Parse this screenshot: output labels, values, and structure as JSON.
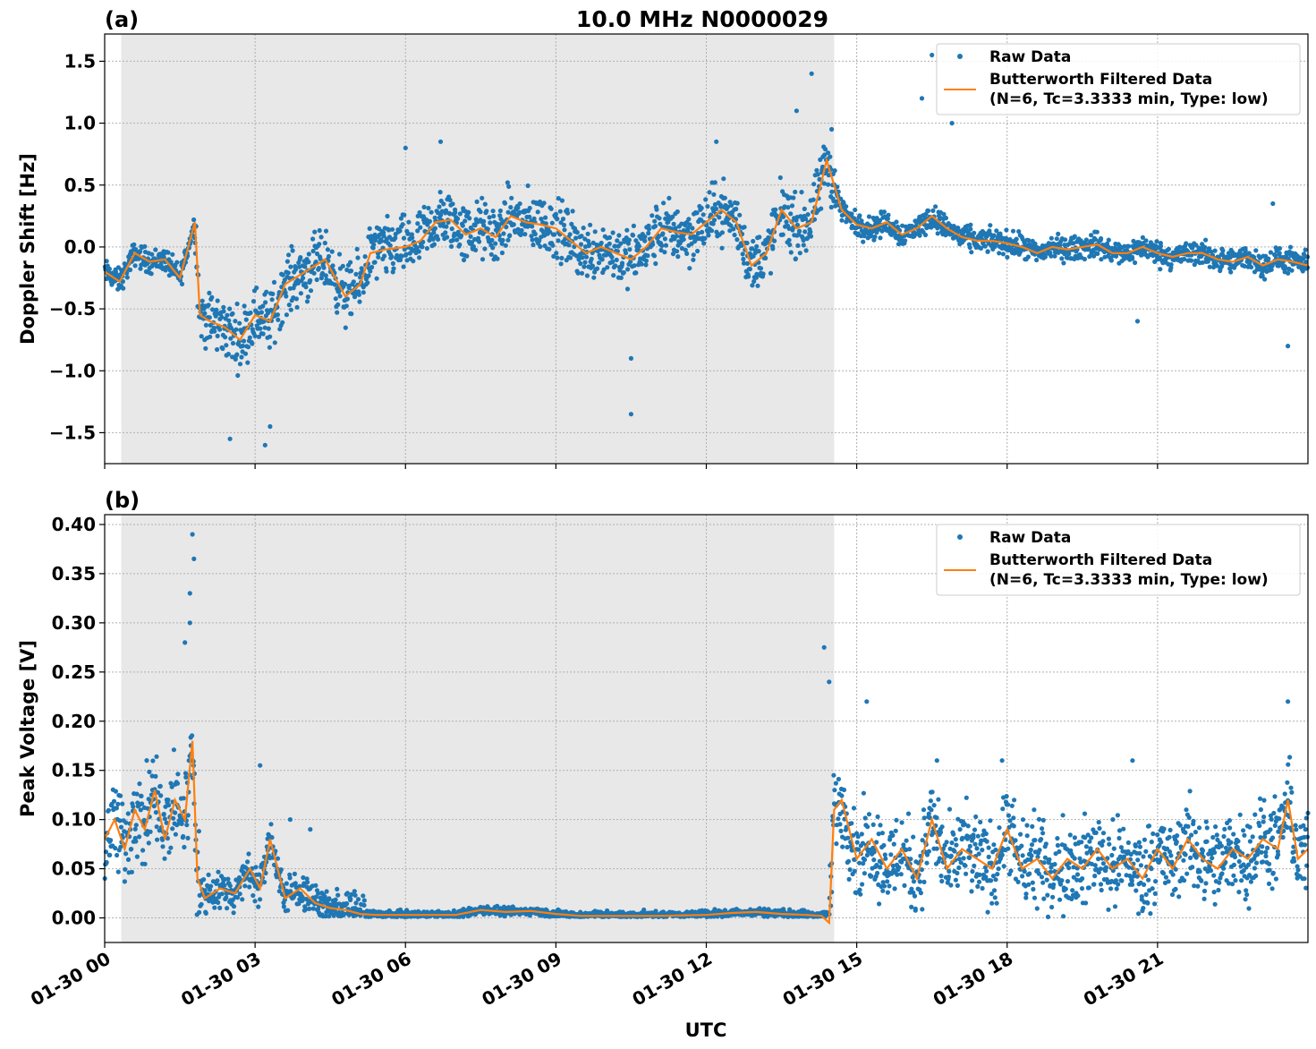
{
  "figure": {
    "title": "10.0 MHz N0000029",
    "xlabel": "UTC",
    "colors": {
      "raw": "#1f77b4",
      "filtered": "#ff7f0e",
      "shade": "#e8e8e8",
      "grid": "#b0b0b0"
    }
  },
  "chart_data": [
    {
      "type": "scatter",
      "panel_label": "(a)",
      "ylabel": "Doppler Shift [Hz]",
      "xlim_hours": [
        0,
        24
      ],
      "ylim": [
        -1.75,
        1.72
      ],
      "x_ticks": [
        {
          "value": 0,
          "label": "01-30 00"
        },
        {
          "value": 3,
          "label": "01-30 03"
        },
        {
          "value": 6,
          "label": "01-30 06"
        },
        {
          "value": 9,
          "label": "01-30 09"
        },
        {
          "value": 12,
          "label": "01-30 12"
        },
        {
          "value": 15,
          "label": "01-30 15"
        },
        {
          "value": 18,
          "label": "01-30 18"
        },
        {
          "value": 21,
          "label": "01-30 21"
        }
      ],
      "y_ticks": [
        {
          "value": 1.5,
          "label": "1.5"
        },
        {
          "value": 1.0,
          "label": "1.0"
        },
        {
          "value": 0.5,
          "label": "0.5"
        },
        {
          "value": 0.0,
          "label": "0.0"
        },
        {
          "value": -0.5,
          "label": "−0.5"
        },
        {
          "value": -1.0,
          "label": "−1.0"
        },
        {
          "value": -1.5,
          "label": "−1.5"
        }
      ],
      "grid": true,
      "shaded_region_hours": [
        0.33,
        14.55
      ],
      "legend_position": "top-right",
      "legend": {
        "raw_label": "Raw Data",
        "filtered_label_1": "Butterworth Filtered Data",
        "filtered_label_2": "(N=6, Tc=3.3333 min, Type: low)"
      },
      "filtered_series": {
        "name": "Butterworth Filtered Data",
        "x_hours": [
          0,
          0.3,
          0.6,
          0.9,
          1.2,
          1.5,
          1.8,
          1.9,
          2.1,
          2.4,
          2.7,
          3.0,
          3.3,
          3.6,
          4.0,
          4.4,
          4.8,
          5.1,
          5.3,
          5.6,
          6.0,
          6.3,
          6.6,
          6.9,
          7.2,
          7.5,
          7.8,
          8.1,
          8.4,
          8.7,
          9.0,
          9.3,
          9.6,
          9.9,
          10.2,
          10.5,
          10.8,
          11.1,
          11.4,
          11.7,
          12.0,
          12.3,
          12.6,
          12.9,
          13.2,
          13.5,
          13.8,
          14.1,
          14.4,
          14.55,
          14.7,
          15.0,
          15.3,
          15.6,
          15.9,
          16.2,
          16.5,
          16.8,
          17.1,
          17.4,
          17.7,
          18.0,
          18.3,
          18.6,
          18.9,
          19.2,
          19.5,
          19.8,
          20.1,
          20.4,
          20.7,
          21.0,
          21.3,
          21.6,
          21.9,
          22.2,
          22.5,
          22.8,
          23.1,
          23.4,
          23.7,
          24.0
        ],
        "values": [
          -0.2,
          -0.28,
          -0.05,
          -0.12,
          -0.1,
          -0.25,
          0.2,
          -0.55,
          -0.6,
          -0.65,
          -0.75,
          -0.55,
          -0.6,
          -0.3,
          -0.2,
          -0.1,
          -0.4,
          -0.3,
          -0.05,
          -0.02,
          0.0,
          0.05,
          0.2,
          0.22,
          0.1,
          0.15,
          0.08,
          0.25,
          0.2,
          0.18,
          0.15,
          0.05,
          -0.05,
          0.0,
          -0.05,
          -0.1,
          0.0,
          0.15,
          0.12,
          0.1,
          0.2,
          0.3,
          0.2,
          -0.15,
          -0.05,
          0.3,
          0.15,
          0.2,
          0.7,
          0.5,
          0.3,
          0.18,
          0.15,
          0.2,
          0.1,
          0.15,
          0.25,
          0.15,
          0.08,
          0.05,
          0.05,
          0.03,
          0.0,
          -0.05,
          0.0,
          -0.02,
          0.0,
          0.02,
          -0.05,
          -0.05,
          0.0,
          -0.05,
          -0.08,
          -0.05,
          -0.05,
          -0.1,
          -0.12,
          -0.08,
          -0.15,
          -0.1,
          -0.12,
          -0.15
        ]
      },
      "raw_series": {
        "name": "Raw Data",
        "outliers": [
          [
            2.5,
            -1.55
          ],
          [
            3.2,
            -1.6
          ],
          [
            3.3,
            -1.45
          ],
          [
            6.0,
            0.8
          ],
          [
            6.7,
            0.85
          ],
          [
            10.5,
            -1.35
          ],
          [
            10.5,
            -0.9
          ],
          [
            12.2,
            0.85
          ],
          [
            13.8,
            1.1
          ],
          [
            14.1,
            1.4
          ],
          [
            14.5,
            0.95
          ],
          [
            16.5,
            1.55
          ],
          [
            16.3,
            1.2
          ],
          [
            16.9,
            1.0
          ],
          [
            20.6,
            -0.6
          ],
          [
            23.3,
            0.35
          ],
          [
            23.6,
            -0.8
          ]
        ]
      }
    },
    {
      "type": "scatter",
      "panel_label": "(b)",
      "ylabel": "Peak Voltage [V]",
      "xlim_hours": [
        0,
        24
      ],
      "ylim": [
        -0.025,
        0.41
      ],
      "x_ticks": [
        {
          "value": 0,
          "label": "01-30 00"
        },
        {
          "value": 3,
          "label": "01-30 03"
        },
        {
          "value": 6,
          "label": "01-30 06"
        },
        {
          "value": 9,
          "label": "01-30 09"
        },
        {
          "value": 12,
          "label": "01-30 12"
        },
        {
          "value": 15,
          "label": "01-30 15"
        },
        {
          "value": 18,
          "label": "01-30 18"
        },
        {
          "value": 21,
          "label": "01-30 21"
        }
      ],
      "y_ticks": [
        {
          "value": 0.4,
          "label": "0.40"
        },
        {
          "value": 0.35,
          "label": "0.35"
        },
        {
          "value": 0.3,
          "label": "0.30"
        },
        {
          "value": 0.25,
          "label": "0.25"
        },
        {
          "value": 0.2,
          "label": "0.20"
        },
        {
          "value": 0.15,
          "label": "0.15"
        },
        {
          "value": 0.1,
          "label": "0.10"
        },
        {
          "value": 0.05,
          "label": "0.05"
        },
        {
          "value": 0.0,
          "label": "0.00"
        }
      ],
      "grid": true,
      "shaded_region_hours": [
        0.33,
        14.55
      ],
      "legend_position": "top-right",
      "legend": {
        "raw_label": "Raw Data",
        "filtered_label_1": "Butterworth Filtered Data",
        "filtered_label_2": "(N=6, Tc=3.3333 min, Type: low)"
      },
      "filtered_series": {
        "name": "Butterworth Filtered Data",
        "x_hours": [
          0,
          0.2,
          0.4,
          0.6,
          0.8,
          1.0,
          1.2,
          1.4,
          1.6,
          1.75,
          1.85,
          2.0,
          2.3,
          2.6,
          2.9,
          3.1,
          3.3,
          3.6,
          3.9,
          4.2,
          4.5,
          4.8,
          5.1,
          5.4,
          6.0,
          7.0,
          7.5,
          8.0,
          8.5,
          9.0,
          9.5,
          10.0,
          11.0,
          12.0,
          12.5,
          13.0,
          13.5,
          14.0,
          14.3,
          14.45,
          14.55,
          14.7,
          15.0,
          15.3,
          15.6,
          15.9,
          16.2,
          16.5,
          16.8,
          17.1,
          17.4,
          17.7,
          18.0,
          18.3,
          18.6,
          18.9,
          19.2,
          19.5,
          19.8,
          20.1,
          20.4,
          20.7,
          21.0,
          21.3,
          21.6,
          21.9,
          22.2,
          22.5,
          22.8,
          23.1,
          23.4,
          23.6,
          23.8,
          24.0
        ],
        "values": [
          0.08,
          0.1,
          0.07,
          0.11,
          0.09,
          0.13,
          0.08,
          0.12,
          0.1,
          0.18,
          0.04,
          0.02,
          0.03,
          0.025,
          0.05,
          0.03,
          0.08,
          0.02,
          0.03,
          0.015,
          0.01,
          0.008,
          0.004,
          0.003,
          0.003,
          0.003,
          0.008,
          0.006,
          0.007,
          0.004,
          0.002,
          0.002,
          0.002,
          0.003,
          0.005,
          0.006,
          0.004,
          0.003,
          0.002,
          -0.005,
          0.11,
          0.12,
          0.06,
          0.08,
          0.05,
          0.07,
          0.04,
          0.1,
          0.05,
          0.07,
          0.06,
          0.05,
          0.09,
          0.05,
          0.06,
          0.04,
          0.06,
          0.05,
          0.07,
          0.05,
          0.06,
          0.04,
          0.07,
          0.05,
          0.08,
          0.06,
          0.05,
          0.07,
          0.06,
          0.08,
          0.07,
          0.12,
          0.06,
          0.07
        ]
      },
      "raw_series": {
        "name": "Raw Data",
        "outliers": [
          [
            1.7,
            0.33
          ],
          [
            1.75,
            0.39
          ],
          [
            1.78,
            0.365
          ],
          [
            1.7,
            0.3
          ],
          [
            1.6,
            0.28
          ],
          [
            3.1,
            0.155
          ],
          [
            3.7,
            0.1
          ],
          [
            4.1,
            0.09
          ],
          [
            14.35,
            0.275
          ],
          [
            14.45,
            0.24
          ],
          [
            15.2,
            0.22
          ],
          [
            16.6,
            0.16
          ],
          [
            17.9,
            0.16
          ],
          [
            20.5,
            0.16
          ],
          [
            23.6,
            0.22
          ]
        ]
      }
    }
  ]
}
